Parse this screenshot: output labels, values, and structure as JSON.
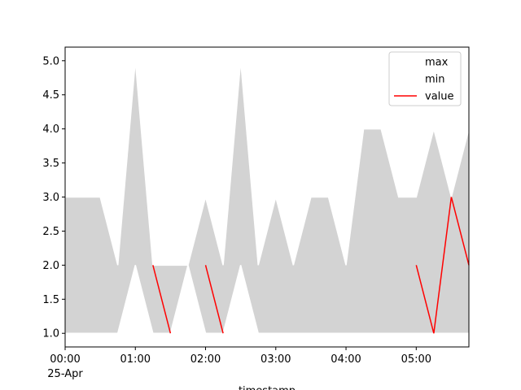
{
  "chart_data": {
    "type": "line",
    "x": [
      "00:00",
      "00:15",
      "00:30",
      "00:45",
      "01:00",
      "01:15",
      "01:30",
      "01:45",
      "02:00",
      "02:15",
      "02:30",
      "02:45",
      "03:00",
      "03:15",
      "03:30",
      "03:45",
      "04:00",
      "04:15",
      "04:30",
      "04:45",
      "05:00",
      "05:15",
      "05:30",
      "05:45"
    ],
    "series": [
      {
        "name": "max",
        "color": "#ffffff",
        "values": [
          3,
          3,
          3,
          2,
          5,
          2,
          2,
          2,
          3,
          2,
          5,
          2,
          3,
          2,
          3,
          3,
          2,
          4,
          4,
          3,
          3,
          4,
          3,
          4
        ]
      },
      {
        "name": "min",
        "color": "#ffffff",
        "values": [
          1,
          1,
          1,
          1,
          2,
          1,
          1,
          2,
          1,
          1,
          2,
          1,
          1,
          1,
          1,
          1,
          1,
          1,
          1,
          1,
          1,
          1,
          1,
          1
        ]
      },
      {
        "name": "value",
        "color": "#ff0000",
        "values": [
          null,
          null,
          null,
          null,
          null,
          2,
          1,
          null,
          2,
          1,
          null,
          null,
          null,
          null,
          null,
          null,
          null,
          null,
          null,
          null,
          2,
          1,
          3,
          2
        ]
      }
    ],
    "fill_color": "#d3d3d3",
    "xlim": [
      "00:00",
      "05:45"
    ],
    "xticks": [
      "00:00",
      "01:00",
      "02:00",
      "03:00",
      "04:00",
      "05:00"
    ],
    "x_date_label": "25-Apr",
    "xlabel": "timestamp",
    "ylim": [
      0.8,
      5.2
    ],
    "yticks": [
      {
        "value": 1,
        "label": "1.0"
      },
      {
        "value": 1.5,
        "label": "1.5"
      },
      {
        "value": 2,
        "label": "2.0"
      },
      {
        "value": 2.5,
        "label": "2.5"
      },
      {
        "value": 3,
        "label": "3.0"
      },
      {
        "value": 3.5,
        "label": "3.5"
      },
      {
        "value": 4,
        "label": "4.0"
      },
      {
        "value": 4.5,
        "label": "4.5"
      },
      {
        "value": 5,
        "label": "5.0"
      }
    ],
    "legend": "upper right"
  }
}
